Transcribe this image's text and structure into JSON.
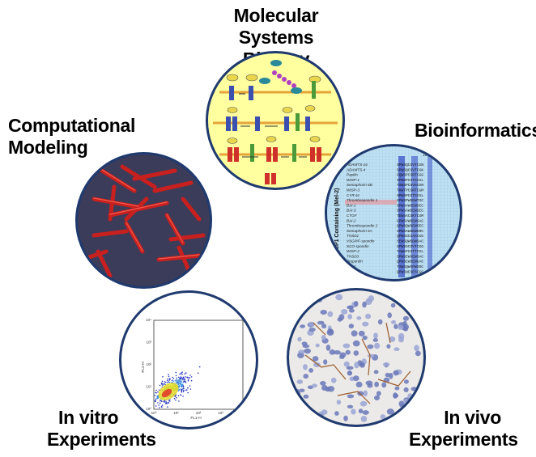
{
  "labels": {
    "molecular_line1": "Molecular",
    "molecular_line2": "Systems Biology",
    "computational_line1": "Computational",
    "computational_line2": "Modeling",
    "bioinformatics": "Bioinformatics",
    "invitro_line1": "In vitro",
    "invitro_line2": "Experiments",
    "invivo_line1": "In vivo",
    "invivo_line2": "Experiments"
  },
  "bioinformatics_panel": {
    "side_label": "TSP1 Containing (Mel-2)",
    "column_number": "10",
    "proteins": [
      "ADAMTS-16",
      "ADAMTS-4",
      "Papilin",
      "WISP-1",
      "Semaphorin 5B",
      "WISP-3",
      "CYR 61",
      "Thrombospondin 1",
      "BAI-1",
      "BAI-3",
      "CTGF",
      "BAI-2",
      "Thrombospondin 2",
      "Semaphorin 5A",
      "THSD1",
      "VSGP/F-spondin",
      "SCO-spondin",
      "WISP-2",
      "THSD3",
      "Properdin",
      "C6/M",
      "C6"
    ],
    "sequences": [
      "SPWSQCSVTCGN",
      "SPWSQCSVTCGK",
      "GQWSPCSRTCGG",
      "SPWSPCSTSCGL",
      "TSWSPCSVSCGR",
      "TKWTPCSRTCGM",
      "SPWSPCSTSCGL",
      "GPWSPWSEWTSC",
      "SPWSVWSEWSEC",
      "SPWSAWSEWSEC",
      "TEWSACSKTCGM",
      "GPWSVWSEWSAC",
      "QPWSQWSEWSEC",
      "SPWSAWSEWSRC",
      "QPWSSCSASCGG",
      "SEWSQWSDWSAC",
      "SPWSSCSVTCGG",
      "TAWGPCSTTCGL",
      "SPWSEWSEWSAC",
      "QPWSEWSEWGAC",
      "TSWSQWSPWSDC",
      "QPWSNCSESCGG"
    ]
  },
  "flow_panel": {
    "xlabel": "FL1-H",
    "ylabel": "FL2-H",
    "x_ticks": [
      "10⁰",
      "10¹",
      "10²",
      "10³",
      "10⁴"
    ],
    "y_ticks": [
      "10⁰",
      "10¹",
      "10²",
      "10³",
      "10⁴"
    ]
  },
  "colors": {
    "circle_border": "#1f3a6e",
    "molecular_bg": "#ffffa0",
    "computational_bg": "#3a3c5a",
    "cells_red": "#c8201e",
    "bioinfo_bg": "#bfe0f2",
    "tissue_bg": "#eceae8"
  }
}
